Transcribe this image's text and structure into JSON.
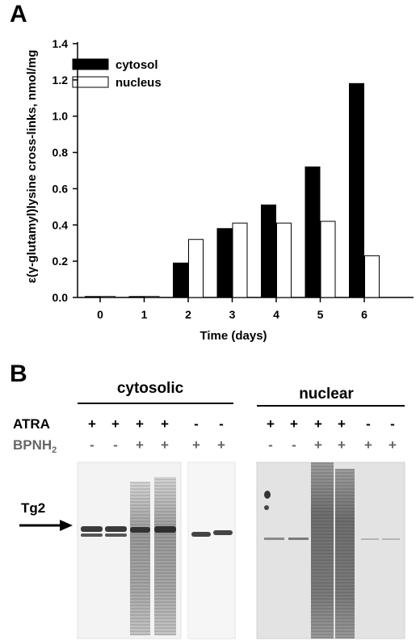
{
  "panel_a": {
    "letter": "A",
    "chart_data": {
      "type": "bar",
      "title": "",
      "xlabel": "Time (days)",
      "ylabel": "ε(γ-glutamyl)lysine cross-links, nmol/mg",
      "categories": [
        "0",
        "1",
        "2",
        "3",
        "4",
        "5",
        "6"
      ],
      "ylim": [
        0,
        1.4
      ],
      "yticks": [
        "0.0",
        "0.2",
        "0.4",
        "0.6",
        "0.8",
        "1.0",
        "1.2",
        "1.4"
      ],
      "grid": false,
      "legend_position": "top-left",
      "series": [
        {
          "name": "cytosol",
          "color": "#000000",
          "values": [
            0.005,
            0.005,
            0.19,
            0.38,
            0.51,
            0.72,
            1.18
          ]
        },
        {
          "name": "nucleus",
          "color": "#ffffff",
          "values": [
            0.002,
            0.002,
            0.32,
            0.41,
            0.41,
            0.42,
            0.23
          ]
        }
      ]
    }
  },
  "panel_b": {
    "letter": "B",
    "groups": [
      {
        "title": "cytosolic"
      },
      {
        "title": "nuclear"
      }
    ],
    "rows": [
      {
        "label": "ATRA",
        "signs": [
          "+",
          "+",
          "+",
          "+",
          "-",
          "-",
          "+",
          "+",
          "+",
          "+",
          "-",
          "-"
        ]
      },
      {
        "label_main": "BPNH",
        "label_sub": "2",
        "signs": [
          "-",
          "-",
          "+",
          "+",
          "+",
          "+",
          "-",
          "-",
          "+",
          "+",
          "+",
          "+"
        ]
      }
    ],
    "band_label": "Tg2",
    "label_color": "#666666"
  }
}
